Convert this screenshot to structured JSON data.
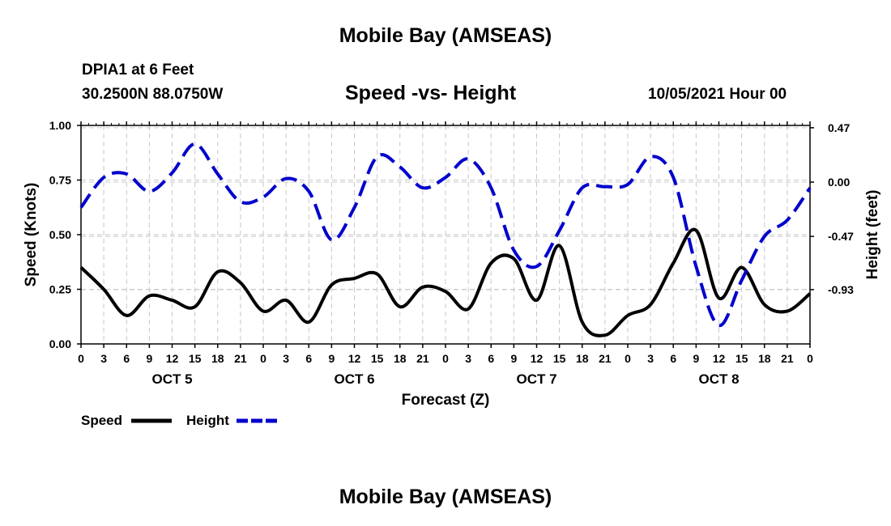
{
  "header": {
    "title": "Mobile Bay (AMSEAS)",
    "station": "DPIA1 at 6 Feet",
    "coords": "30.2500N  88.0750W",
    "subtitle": "Speed -vs- Height",
    "datetime": "10/05/2021 Hour 00"
  },
  "footer": {
    "title": "Mobile Bay (AMSEAS)"
  },
  "chart_data": {
    "type": "line",
    "xlabel": "Forecast (Z)",
    "ylabel_left": "Speed (Knots)",
    "ylabel_right": "Height (feet)",
    "x_range_hours": [
      0,
      96
    ],
    "hour_ticks": [
      "0",
      "3",
      "6",
      "9",
      "12",
      "15",
      "18",
      "21",
      "0",
      "3",
      "6",
      "9",
      "12",
      "15",
      "18",
      "21",
      "0",
      "3",
      "6",
      "9",
      "12",
      "15",
      "18",
      "21",
      "0",
      "3",
      "6",
      "9",
      "12",
      "15",
      "18",
      "21",
      "0"
    ],
    "day_labels": [
      {
        "label": "OCT 5",
        "hour": 12
      },
      {
        "label": "OCT 6",
        "hour": 36
      },
      {
        "label": "OCT 7",
        "hour": 60
      },
      {
        "label": "OCT 8",
        "hour": 84
      }
    ],
    "y_left": {
      "range": [
        0,
        1.0
      ],
      "ticks": [
        "0.00",
        "0.25",
        "0.50",
        "0.75",
        "1.00"
      ],
      "tick_values": [
        0,
        0.25,
        0.5,
        0.75,
        1.0
      ]
    },
    "y_right": {
      "range": [
        -1.4,
        0.49
      ],
      "ticks": [
        "0.47",
        "0.00",
        "-0.47",
        "-0.93"
      ],
      "tick_values": [
        0.47,
        0.0,
        -0.47,
        -0.93
      ]
    },
    "grid": true,
    "legend": {
      "placement": "bottom-left",
      "entries": [
        "Speed",
        "Height"
      ]
    },
    "series": [
      {
        "name": "Speed",
        "axis": "left",
        "color": "#000000",
        "style": "solid",
        "x": [
          0,
          3,
          6,
          9,
          12,
          15,
          18,
          21,
          24,
          27,
          30,
          33,
          36,
          39,
          42,
          45,
          48,
          51,
          54,
          57,
          60,
          63,
          66,
          69,
          72,
          75,
          78,
          81,
          84,
          87,
          90,
          93,
          96
        ],
        "values": [
          0.35,
          0.25,
          0.13,
          0.22,
          0.2,
          0.17,
          0.33,
          0.28,
          0.15,
          0.2,
          0.1,
          0.27,
          0.3,
          0.32,
          0.17,
          0.26,
          0.24,
          0.16,
          0.37,
          0.39,
          0.2,
          0.45,
          0.1,
          0.04,
          0.13,
          0.18,
          0.37,
          0.52,
          0.21,
          0.35,
          0.18,
          0.15,
          0.23
        ]
      },
      {
        "name": "Height",
        "axis": "right",
        "color": "#0000cc",
        "style": "dashed",
        "x": [
          0,
          3,
          6,
          9,
          12,
          15,
          18,
          21,
          24,
          27,
          30,
          33,
          36,
          39,
          42,
          45,
          48,
          51,
          54,
          57,
          60,
          63,
          66,
          69,
          72,
          75,
          78,
          81,
          84,
          87,
          90,
          93,
          96
        ],
        "values": [
          -0.22,
          0.04,
          0.07,
          -0.08,
          0.08,
          0.33,
          0.07,
          -0.17,
          -0.13,
          0.03,
          -0.08,
          -0.5,
          -0.22,
          0.22,
          0.13,
          -0.05,
          0.04,
          0.2,
          -0.05,
          -0.59,
          -0.73,
          -0.42,
          -0.05,
          -0.04,
          -0.02,
          0.22,
          0.04,
          -0.73,
          -1.24,
          -0.85,
          -0.47,
          -0.33,
          -0.05
        ]
      }
    ]
  }
}
